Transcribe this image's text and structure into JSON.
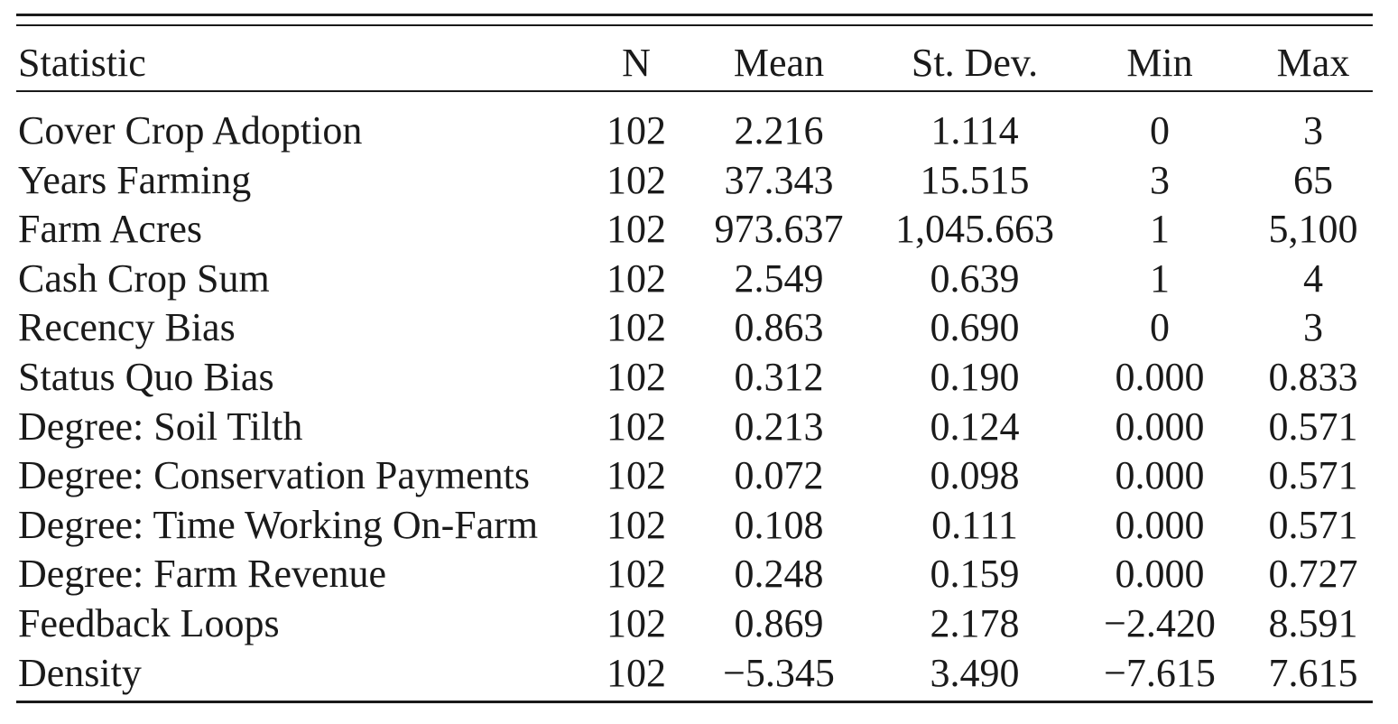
{
  "table": {
    "headers": [
      "Statistic",
      "N",
      "Mean",
      "St. Dev.",
      "Min",
      "Max"
    ],
    "rows": [
      [
        "Cover Crop Adoption",
        "102",
        "2.216",
        "1.114",
        "0",
        "3"
      ],
      [
        "Years Farming",
        "102",
        "37.343",
        "15.515",
        "3",
        "65"
      ],
      [
        "Farm Acres",
        "102",
        "973.637",
        "1,045.663",
        "1",
        "5,100"
      ],
      [
        "Cash Crop Sum",
        "102",
        "2.549",
        "0.639",
        "1",
        "4"
      ],
      [
        "Recency Bias",
        "102",
        "0.863",
        "0.690",
        "0",
        "3"
      ],
      [
        "Status Quo Bias",
        "102",
        "0.312",
        "0.190",
        "0.000",
        "0.833"
      ],
      [
        "Degree: Soil Tilth",
        "102",
        "0.213",
        "0.124",
        "0.000",
        "0.571"
      ],
      [
        "Degree: Conservation Payments",
        "102",
        "0.072",
        "0.098",
        "0.000",
        "0.571"
      ],
      [
        "Degree: Time Working On-Farm",
        "102",
        "0.108",
        "0.111",
        "0.000",
        "0.571"
      ],
      [
        "Degree: Farm Revenue",
        "102",
        "0.248",
        "0.159",
        "0.000",
        "0.727"
      ],
      [
        "Feedback Loops",
        "102",
        "0.869",
        "2.178",
        "−2.420",
        "8.591"
      ],
      [
        "Density",
        "102",
        "−5.345",
        "3.490",
        "−7.615",
        "7.615"
      ]
    ]
  }
}
